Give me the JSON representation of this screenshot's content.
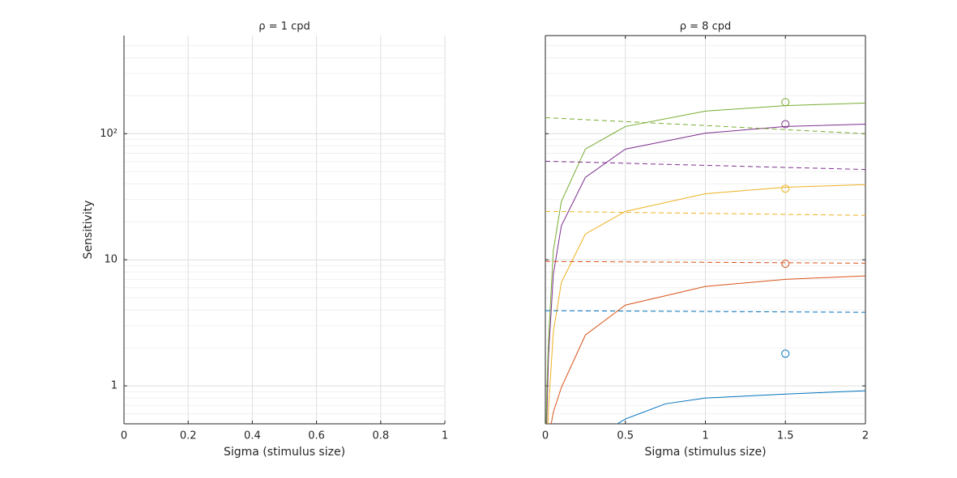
{
  "chart_data": [
    {
      "type": "line",
      "title": "ρ = 1 cpd",
      "xlabel": "Sigma (stimulus size)",
      "ylabel": "Sensitivity",
      "xlim": [
        0,
        1
      ],
      "xticks": [
        0,
        0.2,
        0.4,
        0.6,
        0.8,
        1
      ],
      "ylim": [
        0.5,
        600
      ],
      "yscale": "log",
      "yticks": [
        1,
        10,
        {
          "value": 100,
          "label": "10²"
        }
      ],
      "grid": true,
      "minor_grid": true,
      "box": false,
      "show_ytick_labels": true,
      "series": []
    },
    {
      "type": "line",
      "title": "ρ = 8 cpd",
      "xlabel": "Sigma (stimulus size)",
      "xlim": [
        0,
        2
      ],
      "xticks": [
        0,
        0.5,
        1,
        1.5,
        2
      ],
      "ylim": [
        0.5,
        600
      ],
      "yscale": "log",
      "yticks": [
        1,
        10,
        100
      ],
      "grid": true,
      "minor_grid": true,
      "box": true,
      "show_ytick_labels": false,
      "series": [
        {
          "color": "#0072bd",
          "style": "solid",
          "x": [
            0.45,
            0.5,
            0.75,
            1,
            1.5,
            2
          ],
          "values": [
            0.5,
            0.546,
            0.72,
            0.8,
            0.86,
            0.915
          ]
        },
        {
          "color": "#d95319",
          "style": "solid",
          "x": [
            0.03,
            0.05,
            0.1,
            0.25,
            0.5,
            1,
            1.5,
            2
          ],
          "values": [
            0.45,
            0.62,
            0.97,
            2.53,
            4.37,
            6.15,
            7.0,
            7.45
          ]
        },
        {
          "color": "#edb120",
          "style": "solid",
          "x": [
            0.015,
            0.02,
            0.05,
            0.1,
            0.25,
            0.5,
            1,
            1.5,
            2
          ],
          "values": [
            0.45,
            0.67,
            2.7,
            6.6,
            16,
            24.2,
            33.4,
            37.6,
            39.5
          ]
        },
        {
          "color": "#7e2f8e",
          "style": "solid",
          "x": [
            0.008,
            0.01,
            0.02,
            0.05,
            0.1,
            0.25,
            0.5,
            1,
            1.5,
            2
          ],
          "values": [
            0.45,
            0.62,
            1.75,
            7.7,
            18.6,
            45,
            75.5,
            101,
            114,
            119
          ]
        },
        {
          "color": "#77ac30",
          "style": "solid",
          "x": [
            0.005,
            0.01,
            0.02,
            0.05,
            0.1,
            0.25,
            0.5,
            1,
            1.5,
            2
          ],
          "values": [
            0.5,
            1,
            2.35,
            11.9,
            29,
            75.5,
            114,
            151,
            167,
            175
          ]
        },
        {
          "color": "#0072bd",
          "style": "dashed",
          "x": [
            0,
            2
          ],
          "values": [
            3.95,
            3.83
          ]
        },
        {
          "color": "#d95319",
          "style": "dashed",
          "x": [
            0,
            2
          ],
          "values": [
            9.7,
            9.4
          ]
        },
        {
          "color": "#edb120",
          "style": "dashed",
          "x": [
            0,
            2
          ],
          "values": [
            24.2,
            22.5
          ]
        },
        {
          "color": "#7e2f8e",
          "style": "dashed",
          "x": [
            0,
            2
          ],
          "values": [
            60.5,
            52
          ]
        },
        {
          "color": "#77ac30",
          "style": "dashed",
          "x": [
            0,
            1,
            2
          ],
          "values": [
            134,
            116,
            100
          ]
        },
        {
          "color": "#0072bd",
          "style": "marker",
          "x": [
            1.5
          ],
          "values": [
            1.8
          ]
        },
        {
          "color": "#d95319",
          "style": "marker",
          "x": [
            1.5
          ],
          "values": [
            9.3
          ]
        },
        {
          "color": "#edb120",
          "style": "marker",
          "x": [
            1.5
          ],
          "values": [
            36.6
          ]
        },
        {
          "color": "#7e2f8e",
          "style": "marker",
          "x": [
            1.5
          ],
          "values": [
            119
          ]
        },
        {
          "color": "#77ac30",
          "style": "marker",
          "x": [
            1.5
          ],
          "values": [
            178
          ]
        }
      ]
    }
  ]
}
